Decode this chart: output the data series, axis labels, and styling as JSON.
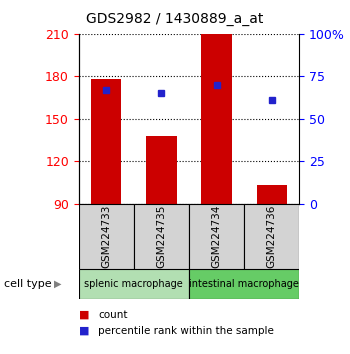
{
  "title": "GDS2982 / 1430889_a_at",
  "samples": [
    "GSM224733",
    "GSM224735",
    "GSM224734",
    "GSM224736"
  ],
  "count_values": [
    178,
    138,
    210,
    103
  ],
  "percentile_values": [
    170,
    168,
    174,
    163
  ],
  "ymin": 90,
  "ymax": 210,
  "yticks_left": [
    90,
    120,
    150,
    180,
    210
  ],
  "yticks_right": [
    0,
    25,
    50,
    75,
    100
  ],
  "bar_color": "#cc0000",
  "dot_color": "#2222cc",
  "group1_label": "splenic macrophage",
  "group2_label": "intestinal macrophage",
  "group1_color": "#b2dfb2",
  "group2_color": "#66cc66",
  "sample_box_color": "#d3d3d3",
  "legend_count_label": "count",
  "legend_pct_label": "percentile rank within the sample",
  "cell_type_label": "cell type",
  "bar_width": 0.55,
  "figsize": [
    3.5,
    3.54
  ],
  "dpi": 100
}
